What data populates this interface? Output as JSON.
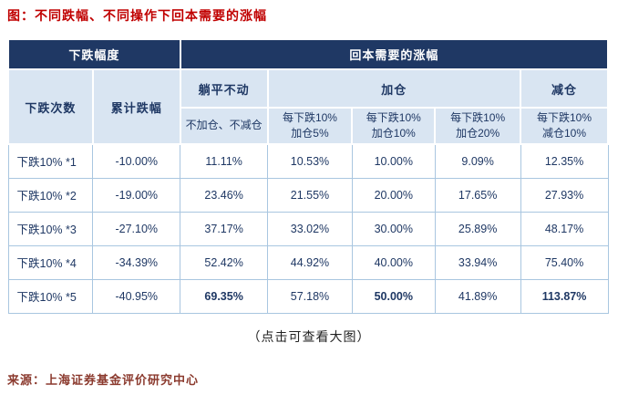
{
  "page": {
    "title": "图：不同跌幅、不同操作下回本需要的涨幅",
    "caption": "（点击可查看大图）",
    "source": "来源：上海证券基金评价研究中心"
  },
  "colors": {
    "header_bg": "#1F3864",
    "subheader_bg": "#D9E5F2",
    "text_navy": "#1F3864",
    "data_border": "#A9C6E0",
    "title_red": "#C00000",
    "source_red_brown": "#8B3A2E"
  },
  "table": {
    "header": {
      "group_left": "下跌幅度",
      "group_right": "回本需要的涨幅",
      "decline_times": "下跌次数",
      "cumulative_decline": "累计跌幅",
      "strategy_flat": "躺平不动",
      "strategy_add": "加仓",
      "strategy_reduce": "减仓",
      "sub_flat": "不加仓、不减仓",
      "sub_add5": "每下跌10%\n加仓5%",
      "sub_add10": "每下跌10%\n加仓10%",
      "sub_add20": "每下跌10%\n加仓20%",
      "sub_reduce10": "每下跌10%\n减仓10%"
    }
  },
  "chart_data": {
    "type": "table",
    "title": "图：不同跌幅、不同操作下回本需要的涨幅",
    "column_groups": [
      "下跌幅度",
      "回本需要的涨幅"
    ],
    "columns": [
      "下跌次数",
      "累计跌幅",
      "躺平不动：不加仓、不减仓",
      "加仓：每下跌10%加仓5%",
      "加仓：每下跌10%加仓10%",
      "加仓：每下跌10%加仓20%",
      "减仓：每下跌10%减仓10%"
    ],
    "rows": [
      [
        "下跌10% *1",
        "-10.00%",
        "11.11%",
        "10.53%",
        "10.00%",
        "9.09%",
        "12.35%"
      ],
      [
        "下跌10% *2",
        "-19.00%",
        "23.46%",
        "21.55%",
        "20.00%",
        "17.65%",
        "27.93%"
      ],
      [
        "下跌10% *3",
        "-27.10%",
        "37.17%",
        "33.02%",
        "30.00%",
        "25.89%",
        "48.17%"
      ],
      [
        "下跌10% *4",
        "-34.39%",
        "52.42%",
        "44.92%",
        "40.00%",
        "33.94%",
        "75.40%"
      ],
      [
        "下跌10% *5",
        "-40.95%",
        "69.35%",
        "57.18%",
        "50.00%",
        "41.89%",
        "113.87%"
      ]
    ],
    "bold_cells_note": "row 下跌10% *5: values 69.35%, 50.00%, 113.87% are emphasized in bold"
  }
}
